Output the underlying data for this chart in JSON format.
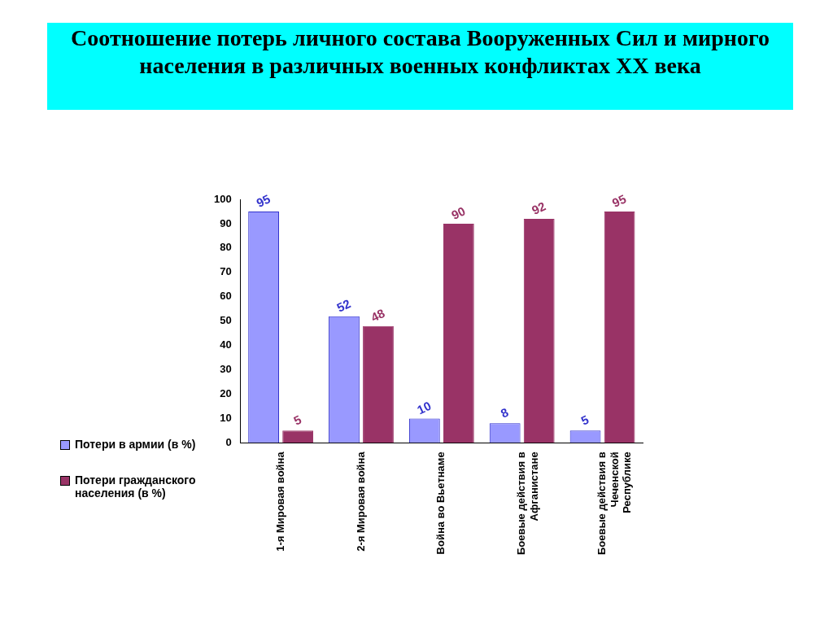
{
  "chart_data": {
    "type": "bar",
    "title": "Соотношение потерь личного состава Вооруженных Сил и мирного населения в различных военных конфликтах XX века",
    "categories": [
      "1-я Мировая война",
      "2-я Мировая война",
      "Война во Вьетнаме",
      "Боевые действия в Афганистане",
      "Боевые действия в Чеченской Республике"
    ],
    "series": [
      {
        "name": "Потери в армии (в %)",
        "color": "#9999ff",
        "values": [
          95,
          52,
          10,
          8,
          5
        ]
      },
      {
        "name": "Потери гражданского населения (в %)",
        "color": "#993366",
        "values": [
          5,
          48,
          90,
          92,
          95
        ]
      }
    ],
    "ylim": [
      0,
      100
    ],
    "yticks": [
      0,
      10,
      20,
      30,
      40,
      50,
      60,
      70,
      80,
      90,
      100
    ],
    "grid": false,
    "legend": "left",
    "data_labels": true
  }
}
